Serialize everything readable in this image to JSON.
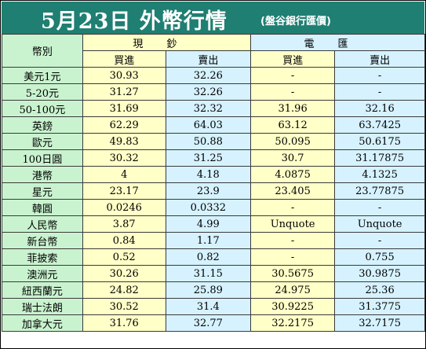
{
  "header": {
    "title": "5月23日 外幣行情",
    "subtitle": "(盤谷銀行匯價)",
    "bg": "#1f7f72"
  },
  "columns": {
    "currency": "幣別",
    "cash": "現鈔",
    "tt": "電匯",
    "buy": "買進",
    "sell": "賣出"
  },
  "rows": [
    {
      "name": "美元1元",
      "cash_buy": "30.93",
      "cash_sell": "32.26",
      "tt_buy": "-",
      "tt_sell": "-"
    },
    {
      "name": "5-20元",
      "cash_buy": "31.27",
      "cash_sell": "32.26",
      "tt_buy": "-",
      "tt_sell": "-"
    },
    {
      "name": "50-100元",
      "cash_buy": "31.69",
      "cash_sell": "32.32",
      "tt_buy": "31.96",
      "tt_sell": "32.16"
    },
    {
      "name": "英鎊",
      "cash_buy": "62.29",
      "cash_sell": "64.03",
      "tt_buy": "63.12",
      "tt_sell": "63.7425"
    },
    {
      "name": "歐元",
      "cash_buy": "49.83",
      "cash_sell": "50.88",
      "tt_buy": "50.095",
      "tt_sell": "50.6175"
    },
    {
      "name": "100日圓",
      "cash_buy": "30.32",
      "cash_sell": "31.25",
      "tt_buy": "30.7",
      "tt_sell": "31.17875"
    },
    {
      "name": "港幣",
      "cash_buy": "4",
      "cash_sell": "4.18",
      "tt_buy": "4.0875",
      "tt_sell": "4.1325"
    },
    {
      "name": "星元",
      "cash_buy": "23.17",
      "cash_sell": "23.9",
      "tt_buy": "23.405",
      "tt_sell": "23.77875"
    },
    {
      "name": "韓圓",
      "cash_buy": "0.0246",
      "cash_sell": "0.0332",
      "tt_buy": "-",
      "tt_sell": "-"
    },
    {
      "name": "人民幣",
      "cash_buy": "3.87",
      "cash_sell": "4.99",
      "tt_buy": "Unquote",
      "tt_sell": "Unquote"
    },
    {
      "name": "新台幣",
      "cash_buy": "0.84",
      "cash_sell": "1.17",
      "tt_buy": "-",
      "tt_sell": "-"
    },
    {
      "name": "菲披索",
      "cash_buy": "0.52",
      "cash_sell": "0.82",
      "tt_buy": "-",
      "tt_sell": "0.755"
    },
    {
      "name": "澳洲元",
      "cash_buy": "30.26",
      "cash_sell": "31.15",
      "tt_buy": "30.5675",
      "tt_sell": "30.9875"
    },
    {
      "name": "紐西蘭元",
      "cash_buy": "24.82",
      "cash_sell": "25.89",
      "tt_buy": "24.975",
      "tt_sell": "25.36"
    },
    {
      "name": "瑞士法朗",
      "cash_buy": "30.52",
      "cash_sell": "31.4",
      "tt_buy": "30.9225",
      "tt_sell": "31.3775"
    },
    {
      "name": "加拿大元",
      "cash_buy": "31.76",
      "cash_sell": "32.77",
      "tt_buy": "32.2175",
      "tt_sell": "32.7175"
    }
  ]
}
